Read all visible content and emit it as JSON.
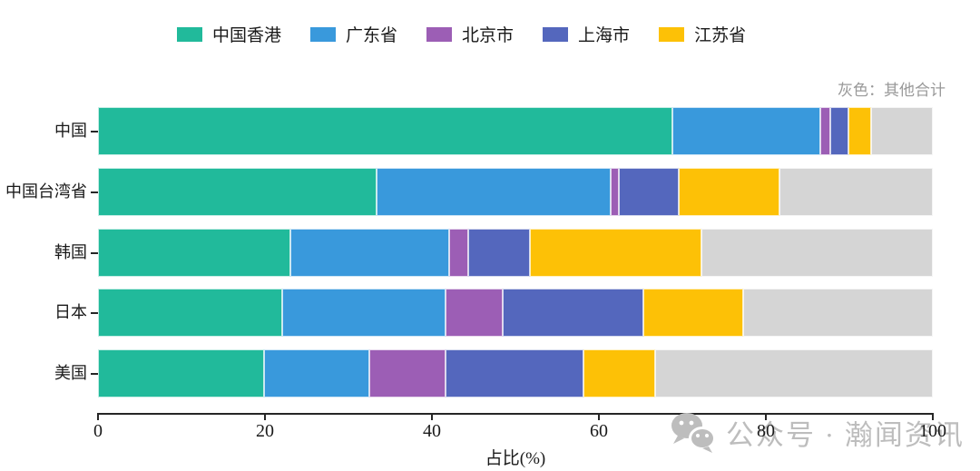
{
  "chart_data": {
    "type": "bar",
    "orientation": "horizontal",
    "stacked": true,
    "title": "",
    "xlabel": "占比(%)",
    "ylabel": "",
    "xlim": [
      0,
      100
    ],
    "xticks": [
      0,
      20,
      40,
      60,
      80,
      100
    ],
    "grid": false,
    "legend_position": "top",
    "legend_entries": [
      "中国香港",
      "广东省",
      "北京市",
      "上海市",
      "江苏省"
    ],
    "note": "灰色：其他合计",
    "categories": [
      "中国",
      "中国台湾省",
      "韩国",
      "日本",
      "美国"
    ],
    "series": [
      {
        "name": "中国香港",
        "color": "#21ba9b",
        "in_legend": true,
        "values": [
          68.8,
          33.4,
          23.0,
          22.1,
          19.9
        ]
      },
      {
        "name": "广东省",
        "color": "#3999dc",
        "in_legend": true,
        "values": [
          17.7,
          28.0,
          19.1,
          19.5,
          12.6
        ]
      },
      {
        "name": "北京市",
        "color": "#9c5eb5",
        "in_legend": true,
        "values": [
          1.2,
          1.0,
          2.2,
          6.9,
          9.1
        ]
      },
      {
        "name": "上海市",
        "color": "#5467bd",
        "in_legend": true,
        "values": [
          2.2,
          7.2,
          7.4,
          16.8,
          16.5
        ]
      },
      {
        "name": "江苏省",
        "color": "#fdc106",
        "in_legend": true,
        "values": [
          2.7,
          12.0,
          20.6,
          12.0,
          8.6
        ]
      },
      {
        "name": "其他合计",
        "color": "#d5d5d5",
        "in_legend": false,
        "values": [
          7.4,
          18.4,
          27.7,
          22.7,
          33.3
        ]
      }
    ]
  },
  "watermark": {
    "icon": "wechat-icon",
    "text": "公众号 · 瀚闻资讯"
  },
  "colors": {
    "axis": "#262626",
    "note_gray": "#999999",
    "watermark_gray": "#bdbdbd"
  }
}
